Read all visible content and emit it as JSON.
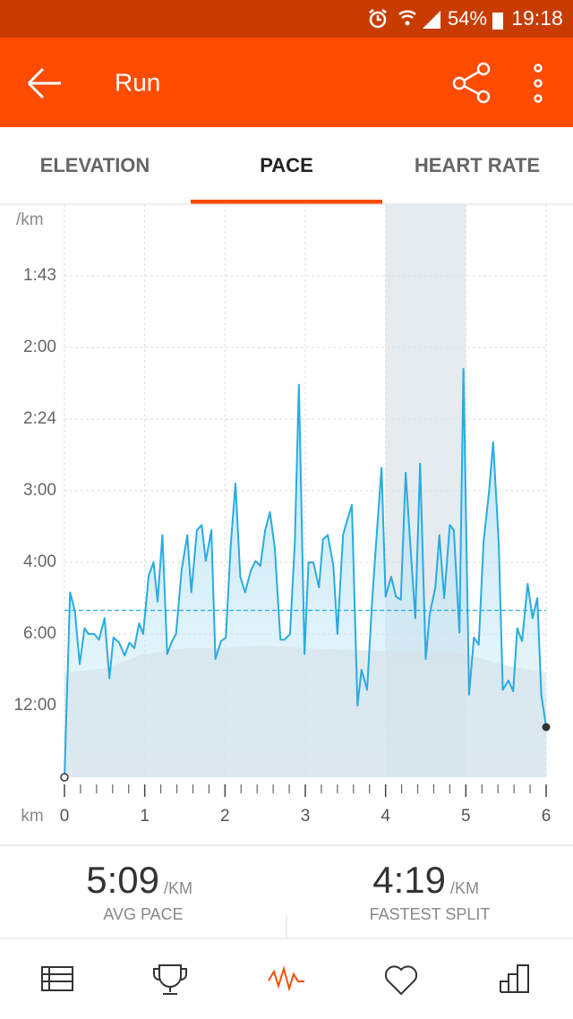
{
  "status_bar": {
    "battery": "54%",
    "time": "19:18"
  },
  "app_bar": {
    "title": "Run"
  },
  "tabs": [
    "ELEVATION",
    "PACE",
    "HEART RATE"
  ],
  "chart_data": {
    "type": "line",
    "y_label": "/km",
    "x_label": "km",
    "xlim": [
      0,
      6
    ],
    "xticks": [
      0,
      1,
      2,
      3,
      4,
      5,
      6
    ],
    "xminorticks": [
      0.2,
      0.4,
      0.6,
      0.8,
      1.2,
      1.4,
      1.6,
      1.8,
      2.2,
      2.4,
      2.6,
      2.8,
      3.2,
      3.4,
      3.6,
      3.8,
      4.2,
      4.4,
      4.6,
      4.8,
      5.2,
      5.4,
      5.6,
      5.8
    ],
    "ylim": [
      0,
      40
    ],
    "yticks": [
      {
        "value": 35,
        "label": "1:43"
      },
      {
        "value": 30,
        "label": "2:00"
      },
      {
        "value": 25,
        "label": "2:24"
      },
      {
        "value": 20,
        "label": "3:00"
      },
      {
        "value": 15,
        "label": "4:00"
      },
      {
        "value": 10,
        "label": "6:00"
      },
      {
        "value": 5,
        "label": "12:00"
      }
    ],
    "grid": true,
    "highlight_range": [
      4,
      5
    ],
    "reference_line": 11.65,
    "series": [
      {
        "color": "#29abe2",
        "fill": "#bfe5f5",
        "x": [
          0,
          0.07,
          0.13,
          0.19,
          0.25,
          0.3,
          0.37,
          0.43,
          0.5,
          0.56,
          0.61,
          0.68,
          0.75,
          0.81,
          0.87,
          0.93,
          0.98,
          1.05,
          1.11,
          1.16,
          1.22,
          1.28,
          1.34,
          1.39,
          1.46,
          1.53,
          1.58,
          1.65,
          1.71,
          1.76,
          1.83,
          1.88,
          1.95,
          2.01,
          2.07,
          2.13,
          2.19,
          2.25,
          2.32,
          2.38,
          2.44,
          2.5,
          2.56,
          2.62,
          2.69,
          2.74,
          2.81,
          2.87,
          2.92,
          2.99,
          3.04,
          3.1,
          3.17,
          3.22,
          3.28,
          3.35,
          3.4,
          3.47,
          3.52,
          3.58,
          3.65,
          3.7,
          3.77,
          3.83,
          3.89,
          3.95,
          4.0,
          4.07,
          4.13,
          4.19,
          4.25,
          4.3,
          4.37,
          4.43,
          4.5,
          4.55,
          4.62,
          4.67,
          4.73,
          4.8,
          4.85,
          4.92,
          4.97,
          5.04,
          5.1,
          5.16,
          5.22,
          5.29,
          5.34,
          5.41,
          5.46,
          5.53,
          5.59,
          5.64,
          5.7,
          5.77,
          5.83,
          5.89,
          5.94,
          6.0
        ],
        "values": [
          0,
          12.9,
          11.6,
          7.9,
          10.4,
          10.0,
          10.0,
          9.6,
          11.1,
          6.9,
          9.75,
          9.4,
          8.5,
          9.4,
          9.0,
          10.75,
          10.0,
          14.1,
          15.0,
          12.25,
          16.9,
          8.6,
          9.5,
          10.0,
          14.5,
          16.9,
          12.9,
          17.25,
          17.6,
          15.1,
          17.25,
          8.25,
          9.5,
          9.75,
          16.1,
          20.5,
          14.0,
          12.9,
          14.4,
          15.1,
          14.75,
          17.25,
          18.5,
          16.0,
          9.6,
          9.6,
          10.0,
          16.5,
          27.4,
          8.6,
          15.0,
          15.0,
          13.25,
          16.6,
          16.9,
          14.75,
          10.0,
          16.9,
          17.9,
          19.0,
          5.0,
          7.5,
          6.1,
          12.1,
          17.0,
          21.6,
          12.6,
          14.0,
          12.6,
          12.4,
          21.25,
          16.9,
          11.1,
          21.9,
          8.25,
          11.4,
          13.25,
          16.9,
          12.5,
          17.6,
          17.25,
          10.1,
          28.5,
          5.75,
          9.75,
          9.25,
          16.4,
          20.0,
          23.4,
          16.25,
          6.1,
          6.75,
          6.0,
          10.4,
          9.5,
          13.5,
          11.1,
          12.5,
          5.75,
          3.5
        ]
      },
      {
        "color": "#d5e2ea",
        "x": [
          0,
          0.5,
          1,
          1.5,
          2,
          2.5,
          3,
          3.5,
          4,
          4.5,
          5,
          5.5,
          6
        ],
        "values": [
          7.3,
          7.6,
          8.6,
          9.0,
          9.0,
          9.2,
          9.0,
          8.9,
          8.8,
          8.8,
          8.6,
          7.8,
          7.3
        ]
      }
    ]
  },
  "stats": [
    {
      "value": "5:09",
      "unit": "/KM",
      "label": "AVG PACE"
    },
    {
      "value": "4:19",
      "unit": "/KM",
      "label": "FASTEST SPLIT"
    }
  ]
}
